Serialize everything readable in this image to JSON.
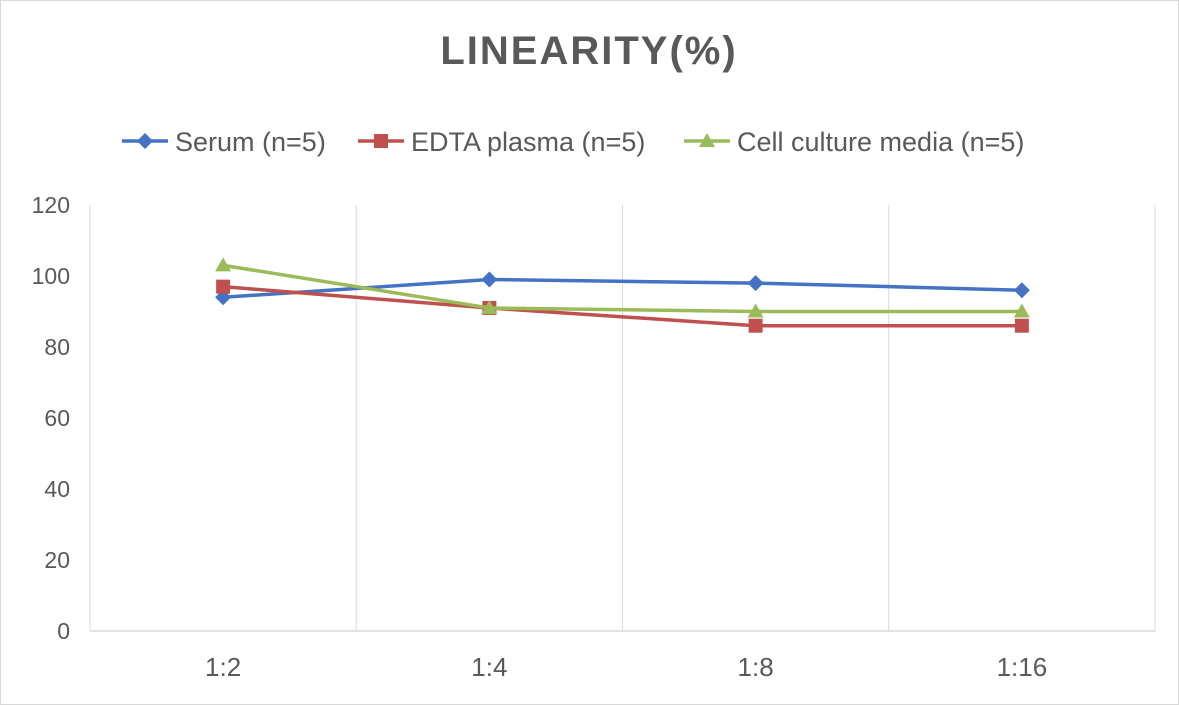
{
  "chart_data": {
    "type": "line",
    "title": "LINEARITY(%)",
    "categories": [
      "1:2",
      "1:4",
      "1:8",
      "1:16"
    ],
    "series": [
      {
        "name": "Serum (n=5)",
        "values": [
          94,
          99,
          98,
          96
        ],
        "color": "#4472C4",
        "marker": "diamond"
      },
      {
        "name": "EDTA plasma (n=5)",
        "values": [
          97,
          91,
          86,
          86
        ],
        "color": "#C0504D",
        "marker": "square"
      },
      {
        "name": "Cell culture media (n=5)",
        "values": [
          103,
          91,
          90,
          90
        ],
        "color": "#9BBB59",
        "marker": "triangle"
      }
    ],
    "ylim": [
      0,
      120
    ],
    "yticks": [
      0,
      20,
      40,
      60,
      80,
      100,
      120
    ],
    "grid": "vertical",
    "legend": "top"
  }
}
